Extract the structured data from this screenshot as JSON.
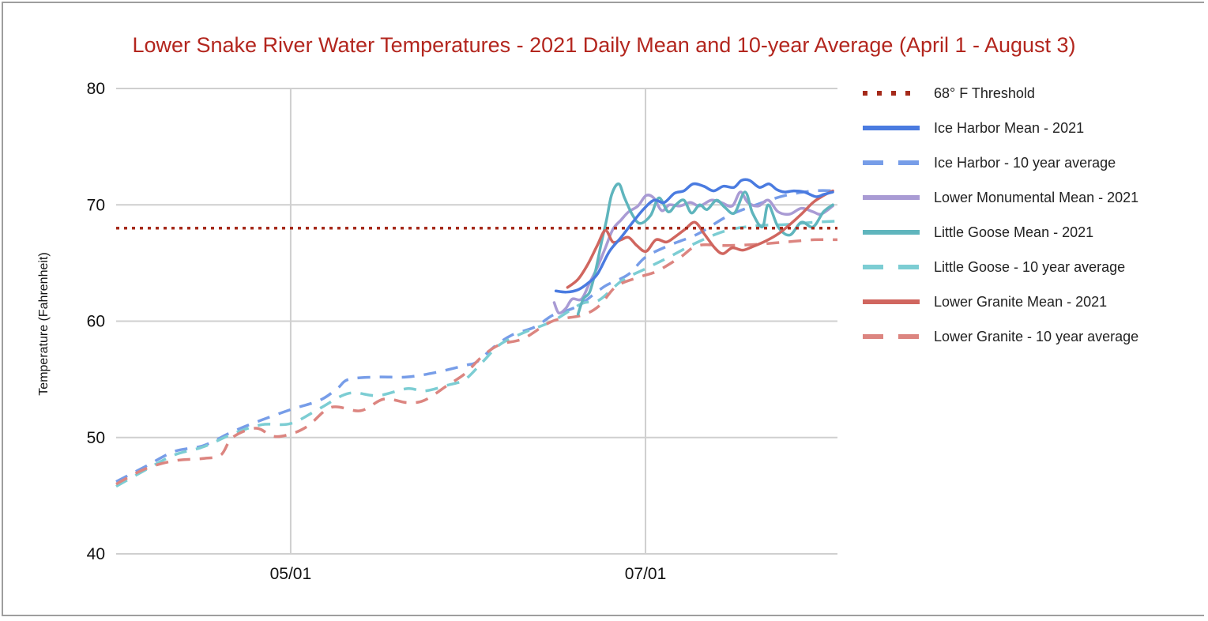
{
  "chart_data": {
    "type": "line",
    "title": "Lower Snake River Water Temperatures - 2021 Daily Mean and 10-year Average (April 1 - August 3)",
    "xlabel": "",
    "ylabel": "Temperature (Fahrenheit)",
    "x_unit": "days since April 1",
    "xlim": [
      0,
      124
    ],
    "ylim": [
      40,
      80
    ],
    "yticks": [
      40,
      50,
      60,
      70,
      80
    ],
    "xticks": [
      {
        "day": 30,
        "label": "05/01"
      },
      {
        "day": 91,
        "label": "07/01"
      }
    ],
    "grid": true,
    "legend_position": "right",
    "series": [
      {
        "name": "68° F Threshold",
        "color": "#a52a1a",
        "style": "dotted",
        "points": [
          [
            0,
            68
          ],
          [
            124,
            68
          ]
        ]
      },
      {
        "name": "Ice Harbor Mean - 2021",
        "color": "#4a7be0",
        "style": "solid",
        "points": [
          [
            75.6,
            62.6
          ],
          [
            77.4,
            62.5
          ],
          [
            79.4,
            62.7
          ],
          [
            81.2,
            63.3
          ],
          [
            82.8,
            64.1
          ],
          [
            84.8,
            66.0
          ],
          [
            86.8,
            67.2
          ],
          [
            88.8,
            68.5
          ],
          [
            90.8,
            69.7
          ],
          [
            92.5,
            70.4
          ],
          [
            94.2,
            70.2
          ],
          [
            96.0,
            71.0
          ],
          [
            97.6,
            71.2
          ],
          [
            99.2,
            71.8
          ],
          [
            101.0,
            71.6
          ],
          [
            102.7,
            71.2
          ],
          [
            104.4,
            71.6
          ],
          [
            106.2,
            71.5
          ],
          [
            107.5,
            72.1
          ],
          [
            108.9,
            72.1
          ],
          [
            110.6,
            71.5
          ],
          [
            112.2,
            71.8
          ],
          [
            113.6,
            71.3
          ],
          [
            114.9,
            71.1
          ],
          [
            116.5,
            71.2
          ],
          [
            118.3,
            71.1
          ],
          [
            120.3,
            70.7
          ],
          [
            121.7,
            70.9
          ],
          [
            123.2,
            71.1
          ]
        ]
      },
      {
        "name": "Ice Harbor - 10 year average",
        "color": "#779de8",
        "style": "dashed",
        "points": [
          [
            0,
            46.2
          ],
          [
            5,
            47.5
          ],
          [
            10,
            48.8
          ],
          [
            15,
            49.3
          ],
          [
            20,
            50.5
          ],
          [
            25,
            51.5
          ],
          [
            30,
            52.4
          ],
          [
            35,
            53.2
          ],
          [
            38,
            54.2
          ],
          [
            40,
            55.0
          ],
          [
            45,
            55.2
          ],
          [
            50,
            55.2
          ],
          [
            55,
            55.6
          ],
          [
            60,
            56.2
          ],
          [
            62,
            56.5
          ],
          [
            65,
            57.8
          ],
          [
            68,
            58.8
          ],
          [
            72,
            59.5
          ],
          [
            75,
            60.5
          ],
          [
            78,
            61.0
          ],
          [
            80,
            61.5
          ],
          [
            84,
            63.0
          ],
          [
            88,
            64.0
          ],
          [
            91,
            65.5
          ],
          [
            95,
            66.5
          ],
          [
            100,
            67.5
          ],
          [
            105,
            69.0
          ],
          [
            110,
            70.0
          ],
          [
            115,
            70.8
          ],
          [
            120,
            71.2
          ],
          [
            124,
            71.2
          ]
        ]
      },
      {
        "name": "Lower Monumental Mean - 2021",
        "color": "#a99bd4",
        "style": "solid",
        "points": [
          [
            75.3,
            61.6
          ],
          [
            76.1,
            60.7
          ],
          [
            77.3,
            61.1
          ],
          [
            78.4,
            61.9
          ],
          [
            80.0,
            61.9
          ],
          [
            81.4,
            63.3
          ],
          [
            82.7,
            64.6
          ],
          [
            84.1,
            66.3
          ],
          [
            85.4,
            67.9
          ],
          [
            86.8,
            68.7
          ],
          [
            88.1,
            69.4
          ],
          [
            89.7,
            69.9
          ],
          [
            91.1,
            70.8
          ],
          [
            92.4,
            70.6
          ],
          [
            93.8,
            69.5
          ],
          [
            95.1,
            70.0
          ],
          [
            96.9,
            69.9
          ],
          [
            98.7,
            70.2
          ],
          [
            100.3,
            69.9
          ],
          [
            102.3,
            70.4
          ],
          [
            104.0,
            70.2
          ],
          [
            105.9,
            69.9
          ],
          [
            107.3,
            71.1
          ],
          [
            108.6,
            70.2
          ],
          [
            110.4,
            69.9
          ],
          [
            112.1,
            70.4
          ],
          [
            113.8,
            69.4
          ],
          [
            115.8,
            69.2
          ],
          [
            117.8,
            69.7
          ],
          [
            119.8,
            69.4
          ],
          [
            121.2,
            69.2
          ],
          [
            123.2,
            69.9
          ]
        ]
      },
      {
        "name": "Little Goose Mean - 2021",
        "color": "#5fb5bd",
        "style": "solid",
        "points": [
          [
            79.4,
            60.6
          ],
          [
            80.3,
            61.9
          ],
          [
            81.4,
            62.5
          ],
          [
            82.4,
            64.3
          ],
          [
            83.4,
            66.7
          ],
          [
            84.3,
            68.7
          ],
          [
            85.2,
            70.9
          ],
          [
            86.4,
            71.8
          ],
          [
            87.4,
            70.6
          ],
          [
            88.8,
            69.1
          ],
          [
            90.1,
            68.4
          ],
          [
            91.9,
            69.1
          ],
          [
            93.3,
            70.6
          ],
          [
            94.9,
            69.4
          ],
          [
            96.2,
            70.0
          ],
          [
            97.6,
            70.4
          ],
          [
            98.9,
            69.3
          ],
          [
            100.3,
            70.0
          ],
          [
            101.6,
            69.6
          ],
          [
            103.2,
            70.4
          ],
          [
            104.6,
            69.8
          ],
          [
            106.3,
            69.3
          ],
          [
            108.1,
            71.1
          ],
          [
            109.4,
            69.3
          ],
          [
            111.1,
            68.1
          ],
          [
            112.1,
            70.0
          ],
          [
            113.8,
            68.1
          ],
          [
            115.8,
            67.4
          ],
          [
            117.8,
            68.5
          ],
          [
            119.8,
            68.1
          ],
          [
            121.6,
            69.4
          ],
          [
            123.2,
            70.0
          ]
        ]
      },
      {
        "name": "Little Goose - 10 year average",
        "color": "#7ccdd3",
        "style": "dashed",
        "points": [
          [
            0,
            45.8
          ],
          [
            5,
            47.2
          ],
          [
            10,
            48.5
          ],
          [
            15,
            49.2
          ],
          [
            20,
            50.3
          ],
          [
            25,
            51.1
          ],
          [
            30,
            51.2
          ],
          [
            35,
            52.5
          ],
          [
            40,
            53.8
          ],
          [
            45,
            53.6
          ],
          [
            50,
            54.2
          ],
          [
            53,
            54.0
          ],
          [
            57,
            54.5
          ],
          [
            60,
            55.0
          ],
          [
            63,
            56.5
          ],
          [
            66,
            58.0
          ],
          [
            70,
            59.0
          ],
          [
            75,
            60.0
          ],
          [
            80,
            61.5
          ],
          [
            83,
            61.8
          ],
          [
            87,
            63.5
          ],
          [
            91,
            64.5
          ],
          [
            95,
            65.5
          ],
          [
            100,
            66.8
          ],
          [
            105,
            67.8
          ],
          [
            110,
            68.2
          ],
          [
            115,
            68.3
          ],
          [
            120,
            68.5
          ],
          [
            124,
            68.6
          ]
        ]
      },
      {
        "name": "Lower Granite Mean - 2021",
        "color": "#d0665f",
        "style": "solid",
        "points": [
          [
            77.6,
            62.9
          ],
          [
            79.4,
            63.6
          ],
          [
            81.1,
            64.9
          ],
          [
            82.7,
            66.5
          ],
          [
            84.1,
            67.8
          ],
          [
            85.4,
            66.8
          ],
          [
            86.8,
            67.0
          ],
          [
            88.1,
            67.2
          ],
          [
            89.5,
            66.5
          ],
          [
            91.1,
            66.0
          ],
          [
            92.8,
            67.0
          ],
          [
            94.6,
            66.8
          ],
          [
            96.2,
            67.3
          ],
          [
            97.8,
            67.9
          ],
          [
            99.5,
            68.5
          ],
          [
            101.1,
            67.5
          ],
          [
            102.9,
            66.3
          ],
          [
            104.3,
            65.8
          ],
          [
            105.9,
            66.3
          ],
          [
            107.7,
            66.1
          ],
          [
            109.4,
            66.4
          ],
          [
            111.7,
            66.9
          ],
          [
            113.8,
            67.5
          ],
          [
            115.8,
            68.3
          ],
          [
            117.8,
            69.2
          ],
          [
            119.8,
            70.2
          ],
          [
            121.6,
            70.8
          ],
          [
            123.2,
            71.2
          ]
        ]
      },
      {
        "name": "Lower Granite - 10 year average",
        "color": "#dc8580",
        "style": "dashed",
        "points": [
          [
            0,
            46.0
          ],
          [
            5,
            47.3
          ],
          [
            10,
            48.0
          ],
          [
            15,
            48.2
          ],
          [
            18,
            48.5
          ],
          [
            20,
            50.0
          ],
          [
            24,
            50.8
          ],
          [
            27,
            50.1
          ],
          [
            30,
            50.3
          ],
          [
            33,
            51.0
          ],
          [
            37,
            52.6
          ],
          [
            42,
            52.3
          ],
          [
            46,
            53.3
          ],
          [
            50,
            53.0
          ],
          [
            53,
            53.2
          ],
          [
            57,
            54.5
          ],
          [
            60,
            55.5
          ],
          [
            63,
            57.0
          ],
          [
            66,
            58.0
          ],
          [
            70,
            58.5
          ],
          [
            75,
            60.0
          ],
          [
            80,
            60.5
          ],
          [
            83,
            61.3
          ],
          [
            86,
            63.0
          ],
          [
            90,
            63.8
          ],
          [
            93,
            64.3
          ],
          [
            97,
            65.5
          ],
          [
            100,
            66.5
          ],
          [
            105,
            66.5
          ],
          [
            110,
            66.6
          ],
          [
            115,
            66.8
          ],
          [
            120,
            67.0
          ],
          [
            124,
            67.0
          ]
        ]
      }
    ]
  }
}
